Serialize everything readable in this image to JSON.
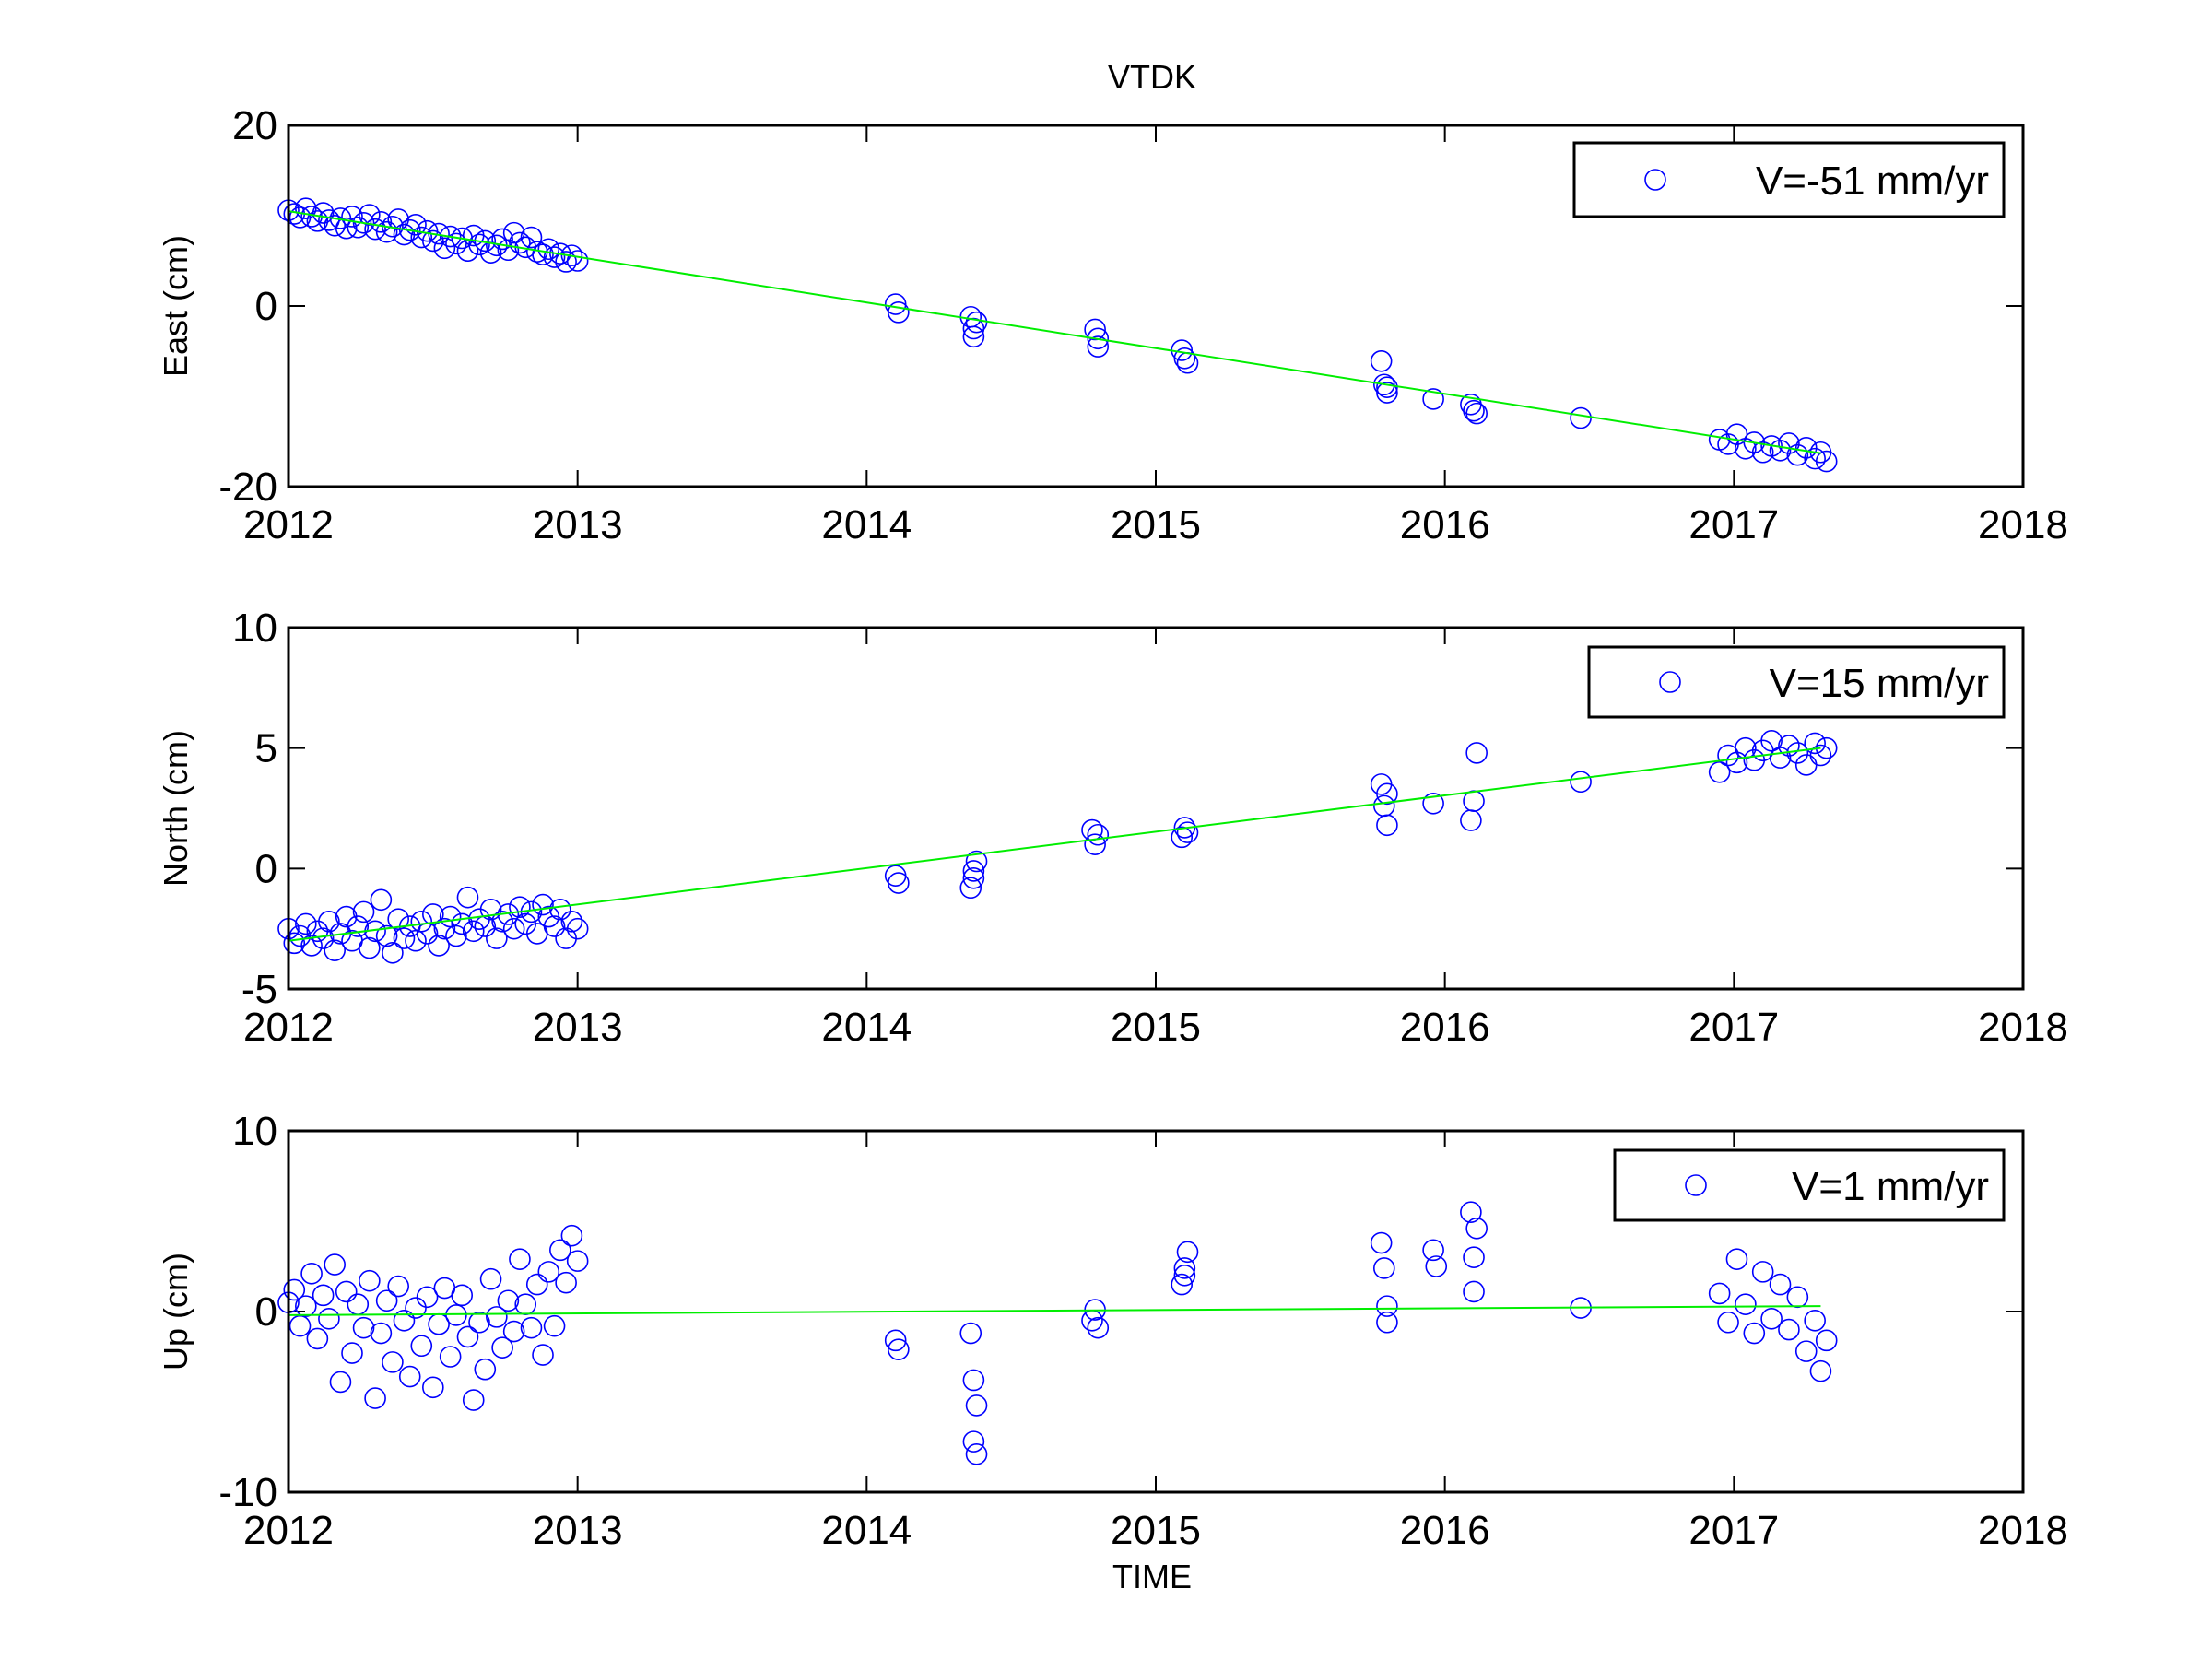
{
  "title": "VTDK",
  "xlabel": "TIME",
  "colors": {
    "points": "#0000ff",
    "fit": "#00ee00",
    "axes": "#000000",
    "background": "#ffffff"
  },
  "chart_data": [
    {
      "type": "scatter",
      "ylabel": "East (cm)",
      "legend": "V=-51 mm/yr",
      "legend_position": "top-right",
      "xlim": [
        2012,
        2018
      ],
      "ylim": [
        -20,
        20
      ],
      "xticks": [
        "2012",
        "2013",
        "2014",
        "2015",
        "2016",
        "2017",
        "2018"
      ],
      "yticks": [
        "-20",
        "0",
        "20"
      ],
      "fit": {
        "x": [
          2012.0,
          2017.3
        ],
        "y": [
          10.5,
          -16.3
        ]
      },
      "points": {
        "x": [
          2012.0,
          2012.02,
          2012.04,
          2012.06,
          2012.08,
          2012.1,
          2012.12,
          2012.14,
          2012.16,
          2012.18,
          2012.2,
          2012.22,
          2012.24,
          2012.26,
          2012.28,
          2012.3,
          2012.32,
          2012.34,
          2012.36,
          2012.38,
          2012.4,
          2012.42,
          2012.44,
          2012.46,
          2012.48,
          2012.5,
          2012.52,
          2012.54,
          2012.56,
          2012.58,
          2012.6,
          2012.62,
          2012.64,
          2012.66,
          2012.68,
          2012.7,
          2012.72,
          2012.74,
          2012.76,
          2012.78,
          2012.8,
          2012.82,
          2012.84,
          2012.86,
          2012.88,
          2012.9,
          2012.92,
          2012.94,
          2012.96,
          2012.98,
          2013.0,
          2014.1,
          2014.11,
          2014.36,
          2014.37,
          2014.37,
          2014.38,
          2014.79,
          2014.8,
          2014.8,
          2015.09,
          2015.1,
          2015.11,
          2015.78,
          2015.79,
          2015.8,
          2015.8,
          2015.96,
          2016.09,
          2016.1,
          2016.11,
          2016.47,
          2016.95,
          2016.98,
          2017.01,
          2017.04,
          2017.07,
          2017.1,
          2017.13,
          2017.16,
          2017.19,
          2017.22,
          2017.25,
          2017.28,
          2017.3,
          2017.32
        ],
        "y": [
          10.6,
          10.2,
          9.8,
          10.8,
          9.9,
          9.4,
          10.3,
          9.5,
          8.9,
          9.7,
          8.6,
          9.9,
          8.7,
          9.2,
          10.1,
          8.5,
          9.3,
          8.2,
          8.8,
          9.6,
          7.9,
          8.4,
          9.0,
          7.6,
          8.3,
          7.2,
          8.0,
          6.4,
          7.7,
          6.9,
          7.5,
          6.1,
          7.8,
          6.8,
          7.2,
          5.9,
          6.7,
          7.4,
          6.2,
          8.1,
          7.0,
          6.5,
          7.6,
          6.0,
          5.7,
          6.3,
          5.4,
          5.8,
          4.9,
          5.6,
          5.0,
          0.2,
          -0.7,
          -1.2,
          -2.5,
          -3.4,
          -1.8,
          -2.6,
          -3.6,
          -4.5,
          -4.9,
          -5.8,
          -6.3,
          -6.1,
          -8.7,
          -9.6,
          -9.0,
          -10.3,
          -10.9,
          -11.6,
          -11.9,
          -12.4,
          -14.8,
          -15.3,
          -14.2,
          -15.8,
          -15.1,
          -16.2,
          -15.5,
          -16.0,
          -15.2,
          -16.5,
          -15.7,
          -16.9,
          -16.2,
          -17.2
        ]
      }
    },
    {
      "type": "scatter",
      "ylabel": "North (cm)",
      "legend": "V=15 mm/yr",
      "legend_position": "top-right",
      "xlim": [
        2012,
        2018
      ],
      "ylim": [
        -5,
        10
      ],
      "xticks": [
        "2012",
        "2013",
        "2014",
        "2015",
        "2016",
        "2017",
        "2018"
      ],
      "yticks": [
        "-5",
        "0",
        "5",
        "10"
      ],
      "fit": {
        "x": [
          2012.0,
          2017.3
        ],
        "y": [
          -3.0,
          5.0
        ]
      },
      "points": {
        "x": [
          2012.0,
          2012.02,
          2012.04,
          2012.06,
          2012.08,
          2012.1,
          2012.12,
          2012.14,
          2012.16,
          2012.18,
          2012.2,
          2012.22,
          2012.24,
          2012.26,
          2012.28,
          2012.3,
          2012.32,
          2012.34,
          2012.36,
          2012.38,
          2012.4,
          2012.42,
          2012.44,
          2012.46,
          2012.48,
          2012.5,
          2012.52,
          2012.54,
          2012.56,
          2012.58,
          2012.6,
          2012.62,
          2012.64,
          2012.66,
          2012.68,
          2012.7,
          2012.72,
          2012.74,
          2012.76,
          2012.78,
          2012.8,
          2012.82,
          2012.84,
          2012.86,
          2012.88,
          2012.9,
          2012.92,
          2012.94,
          2012.96,
          2012.98,
          2013.0,
          2014.1,
          2014.11,
          2014.36,
          2014.37,
          2014.38,
          2014.37,
          2014.78,
          2014.79,
          2014.8,
          2015.09,
          2015.1,
          2015.11,
          2015.78,
          2015.79,
          2015.8,
          2015.8,
          2015.96,
          2016.09,
          2016.1,
          2016.11,
          2016.47,
          2016.95,
          2016.98,
          2017.01,
          2017.04,
          2017.07,
          2017.1,
          2017.13,
          2017.16,
          2017.19,
          2017.22,
          2017.25,
          2017.28,
          2017.3,
          2017.32
        ],
        "y": [
          -2.5,
          -3.1,
          -2.8,
          -2.3,
          -3.2,
          -2.6,
          -2.9,
          -2.2,
          -3.4,
          -2.7,
          -2.0,
          -3.0,
          -2.4,
          -1.8,
          -3.3,
          -2.6,
          -1.3,
          -2.8,
          -3.5,
          -2.1,
          -2.9,
          -2.4,
          -3.0,
          -2.2,
          -2.7,
          -1.9,
          -3.2,
          -2.5,
          -2.0,
          -2.8,
          -2.3,
          -1.2,
          -2.6,
          -2.1,
          -2.4,
          -1.7,
          -2.9,
          -2.2,
          -1.9,
          -2.5,
          -1.6,
          -2.3,
          -1.8,
          -2.7,
          -1.5,
          -2.0,
          -2.4,
          -1.7,
          -2.9,
          -2.2,
          -2.5,
          -0.3,
          -0.6,
          -0.8,
          -0.1,
          0.3,
          -0.4,
          1.6,
          1.0,
          1.4,
          1.3,
          1.7,
          1.5,
          3.5,
          2.6,
          1.8,
          3.1,
          2.7,
          2.0,
          2.8,
          4.8,
          3.6,
          4.0,
          4.7,
          4.4,
          5.0,
          4.5,
          4.9,
          5.3,
          4.6,
          5.1,
          4.8,
          4.3,
          5.2,
          4.7,
          5.0
        ]
      }
    },
    {
      "type": "scatter",
      "ylabel": "Up (cm)",
      "legend": "V=1 mm/yr",
      "legend_position": "top-right",
      "xlim": [
        2012,
        2018
      ],
      "ylim": [
        -10,
        10
      ],
      "xticks": [
        "2012",
        "2013",
        "2014",
        "2015",
        "2016",
        "2017",
        "2018"
      ],
      "yticks": [
        "-10",
        "0",
        "10"
      ],
      "fit": {
        "x": [
          2012.0,
          2017.3
        ],
        "y": [
          -0.2,
          0.3
        ]
      },
      "points": {
        "x": [
          2012.0,
          2012.02,
          2012.04,
          2012.06,
          2012.08,
          2012.1,
          2012.12,
          2012.14,
          2012.16,
          2012.18,
          2012.2,
          2012.22,
          2012.24,
          2012.26,
          2012.28,
          2012.3,
          2012.32,
          2012.34,
          2012.36,
          2012.38,
          2012.4,
          2012.42,
          2012.44,
          2012.46,
          2012.48,
          2012.5,
          2012.52,
          2012.54,
          2012.56,
          2012.58,
          2012.6,
          2012.62,
          2012.64,
          2012.66,
          2012.68,
          2012.7,
          2012.72,
          2012.74,
          2012.76,
          2012.78,
          2012.8,
          2012.82,
          2012.84,
          2012.86,
          2012.88,
          2012.9,
          2012.92,
          2012.94,
          2012.96,
          2012.98,
          2013.0,
          2014.1,
          2014.11,
          2014.36,
          2014.37,
          2014.38,
          2014.37,
          2014.38,
          2014.78,
          2014.79,
          2014.8,
          2015.09,
          2015.1,
          2015.11,
          2015.1,
          2015.78,
          2015.79,
          2015.8,
          2015.8,
          2015.96,
          2015.97,
          2016.09,
          2016.1,
          2016.11,
          2016.1,
          2016.47,
          2016.95,
          2016.98,
          2017.01,
          2017.04,
          2017.07,
          2017.1,
          2017.13,
          2017.16,
          2017.19,
          2017.22,
          2017.25,
          2017.28,
          2017.3,
          2017.32
        ],
        "y": [
          0.5,
          1.2,
          -0.8,
          0.3,
          2.1,
          -1.5,
          0.9,
          -0.4,
          2.6,
          -3.9,
          1.1,
          -2.3,
          0.4,
          -0.9,
          1.7,
          -4.8,
          -1.2,
          0.6,
          -2.8,
          1.4,
          -0.5,
          -3.6,
          0.2,
          -1.9,
          0.8,
          -4.2,
          -0.7,
          1.3,
          -2.5,
          -0.2,
          0.9,
          -1.4,
          -4.9,
          -0.6,
          -3.2,
          1.8,
          -0.3,
          -2.0,
          0.6,
          -1.1,
          2.9,
          0.4,
          -0.9,
          1.5,
          -2.4,
          2.2,
          -0.8,
          3.4,
          1.6,
          4.2,
          2.8,
          -1.6,
          -2.1,
          -1.2,
          -3.8,
          -5.2,
          -7.2,
          -7.9,
          -0.5,
          0.1,
          -0.9,
          1.5,
          2.4,
          3.3,
          2.0,
          3.8,
          2.4,
          -0.6,
          0.3,
          3.4,
          2.5,
          5.5,
          1.1,
          4.6,
          3.0,
          0.2,
          1.0,
          -0.6,
          2.9,
          0.4,
          -1.2,
          2.2,
          -0.4,
          1.5,
          -1.0,
          0.8,
          -2.2,
          -0.5,
          -3.3,
          -1.6
        ]
      }
    }
  ]
}
